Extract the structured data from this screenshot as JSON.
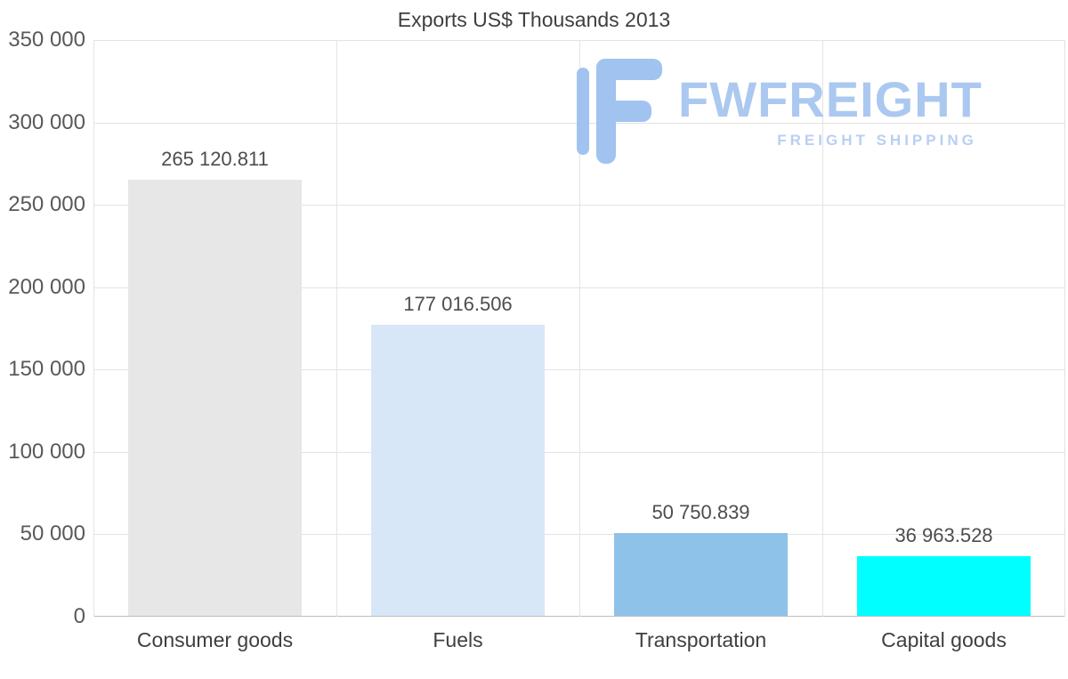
{
  "title": "Exports US$ Thousands 2013",
  "watermark": {
    "brand": "FWFREIGHT",
    "tagline": "FREIGHT SHIPPING",
    "color": "#a7c6f0"
  },
  "chart_data": {
    "type": "bar",
    "title": "Exports US$ Thousands 2013",
    "categories": [
      "Consumer goods",
      "Fuels",
      "Transportation",
      "Capital goods"
    ],
    "values": [
      265120.811,
      177016.506,
      50750.839,
      36963.528
    ],
    "value_labels": [
      "265 120.811",
      "177 016.506",
      "50 750.839",
      "36 963.528"
    ],
    "bar_colors": [
      "#e7e7e7",
      "#d8e7f8",
      "#8fc2e9",
      "#00ffff"
    ],
    "xlabel": "",
    "ylabel": "",
    "ylim": [
      0,
      350000
    ],
    "ytick_step": 50000,
    "ytick_labels": [
      "0",
      "50 000",
      "100 000",
      "150 000",
      "200 000",
      "250 000",
      "300 000",
      "350 000"
    ],
    "grid": true,
    "legend": "none"
  }
}
